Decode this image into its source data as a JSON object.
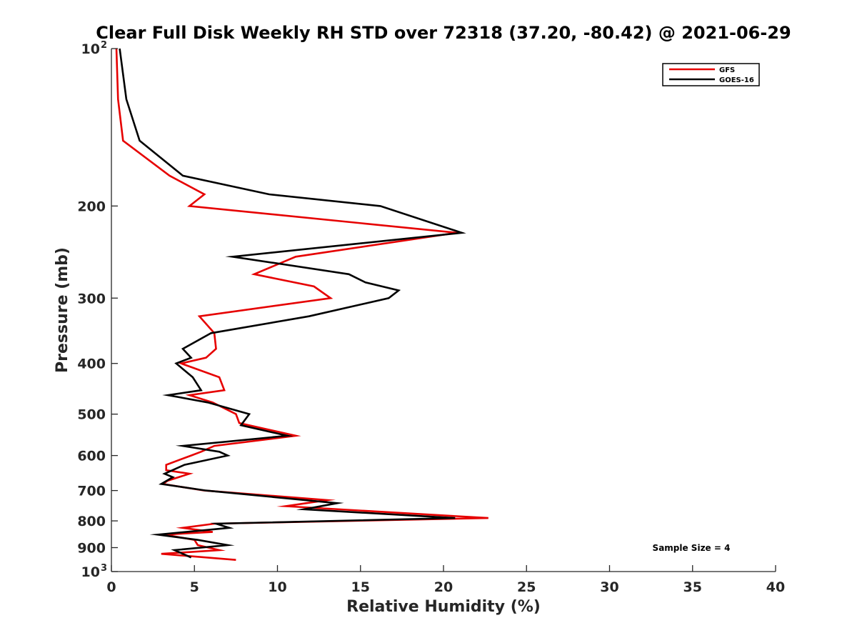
{
  "chart_data": {
    "type": "line",
    "title": "Clear Full Disk Weekly RH STD over 72318 (37.20, -80.42) @ 2021-06-29",
    "xlabel": "Relative Humidity (%)",
    "ylabel": "Pressure (mb)",
    "xlim": [
      0,
      40
    ],
    "ylim": [
      100,
      1000
    ],
    "yscale": "log",
    "y_reversed": true,
    "x_ticks": [
      0,
      5,
      10,
      15,
      20,
      25,
      30,
      35,
      40
    ],
    "y_ticks": [
      {
        "value": 100,
        "label": "10",
        "sup": "2"
      },
      {
        "value": 200,
        "label": "200"
      },
      {
        "value": 300,
        "label": "300"
      },
      {
        "value": 400,
        "label": "400"
      },
      {
        "value": 500,
        "label": "500"
      },
      {
        "value": 600,
        "label": "600"
      },
      {
        "value": 700,
        "label": "700"
      },
      {
        "value": 800,
        "label": "800"
      },
      {
        "value": 900,
        "label": "900"
      },
      {
        "value": 1000,
        "label": "10",
        "sup": "3"
      }
    ],
    "grid": false,
    "legend_position": "top-right",
    "annotation": "Sample Size = 4",
    "series": [
      {
        "name": "GFS",
        "color": "#e60000",
        "points": [
          [
            0.3,
            100
          ],
          [
            0.4,
            125
          ],
          [
            0.7,
            150
          ],
          [
            3.5,
            175
          ],
          [
            5.6,
            190
          ],
          [
            4.7,
            200
          ],
          [
            20.8,
            225
          ],
          [
            11.1,
            250
          ],
          [
            8.6,
            270
          ],
          [
            12.2,
            285
          ],
          [
            13.2,
            300
          ],
          [
            5.3,
            325
          ],
          [
            6.2,
            350
          ],
          [
            6.3,
            375
          ],
          [
            5.7,
            390
          ],
          [
            4.2,
            400
          ],
          [
            6.5,
            425
          ],
          [
            6.8,
            450
          ],
          [
            4.7,
            460
          ],
          [
            6.1,
            475
          ],
          [
            7.5,
            500
          ],
          [
            7.7,
            520
          ],
          [
            11.1,
            550
          ],
          [
            6.2,
            575
          ],
          [
            5.4,
            590
          ],
          [
            4.8,
            600
          ],
          [
            3.3,
            625
          ],
          [
            3.3,
            640
          ],
          [
            4.7,
            650
          ],
          [
            3.4,
            670
          ],
          [
            3.1,
            680
          ],
          [
            5.6,
            700
          ],
          [
            13.0,
            730
          ],
          [
            10.5,
            750
          ],
          [
            22.7,
            790
          ],
          [
            6.2,
            810
          ],
          [
            4.3,
            825
          ],
          [
            6.1,
            840
          ],
          [
            3.2,
            850
          ],
          [
            5.0,
            870
          ],
          [
            5.2,
            890
          ],
          [
            6.5,
            910
          ],
          [
            3.0,
            925
          ],
          [
            7.5,
            950
          ]
        ]
      },
      {
        "name": "GOES-16",
        "color": "#000000",
        "points": [
          [
            0.5,
            100
          ],
          [
            0.9,
            125
          ],
          [
            1.7,
            150
          ],
          [
            4.3,
            175
          ],
          [
            9.5,
            190
          ],
          [
            16.2,
            200
          ],
          [
            21.1,
            225
          ],
          [
            7.3,
            250
          ],
          [
            14.3,
            270
          ],
          [
            15.3,
            280
          ],
          [
            17.3,
            290
          ],
          [
            16.7,
            300
          ],
          [
            11.9,
            325
          ],
          [
            6.0,
            350
          ],
          [
            4.3,
            375
          ],
          [
            4.8,
            390
          ],
          [
            3.9,
            400
          ],
          [
            4.9,
            425
          ],
          [
            5.4,
            450
          ],
          [
            3.4,
            460
          ],
          [
            5.8,
            475
          ],
          [
            8.3,
            500
          ],
          [
            7.8,
            525
          ],
          [
            10.6,
            550
          ],
          [
            4.3,
            575
          ],
          [
            6.5,
            590
          ],
          [
            7.0,
            600
          ],
          [
            4.4,
            625
          ],
          [
            3.2,
            650
          ],
          [
            3.7,
            660
          ],
          [
            3.0,
            680
          ],
          [
            5.7,
            700
          ],
          [
            13.6,
            740
          ],
          [
            11.6,
            760
          ],
          [
            20.7,
            790
          ],
          [
            6.3,
            810
          ],
          [
            7.1,
            825
          ],
          [
            2.8,
            850
          ],
          [
            5.2,
            870
          ],
          [
            7.0,
            890
          ],
          [
            3.8,
            910
          ],
          [
            4.8,
            940
          ]
        ]
      }
    ]
  }
}
